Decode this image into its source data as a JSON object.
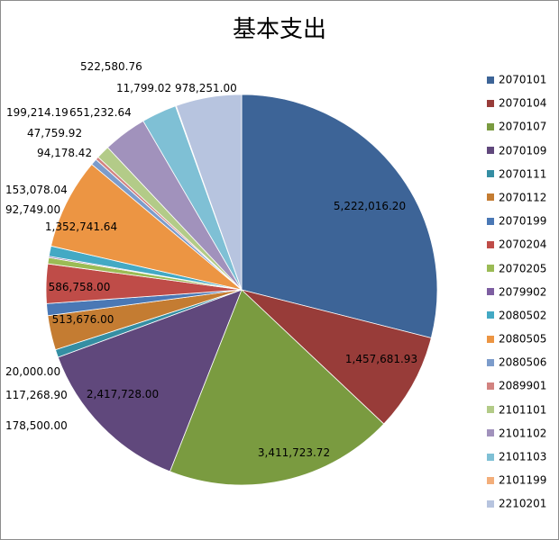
{
  "chart_data": {
    "type": "pie",
    "title": "基本支出",
    "legend_position": "right",
    "slices": [
      {
        "name": "2070101",
        "value": 5222016.2,
        "label": "5,222,016.20",
        "color": "#3d6497"
      },
      {
        "name": "2070104",
        "value": 1457681.93,
        "label": "1,457,681.93",
        "color": "#983c39"
      },
      {
        "name": "2070107",
        "value": 3411723.72,
        "label": "3,411,723.72",
        "color": "#7a9b40"
      },
      {
        "name": "2070109",
        "value": 2417728.0,
        "label": "2,417,728.00",
        "color": "#60487c"
      },
      {
        "name": "2070111",
        "value": 117268.9,
        "label": "117,268.90",
        "color": "#358ea3"
      },
      {
        "name": "2070112",
        "value": 513676.0,
        "label": "513,676.00",
        "color": "#c47c32"
      },
      {
        "name": "2070199",
        "value": 178500.0,
        "label": "178,500.00",
        "color": "#4a78b5"
      },
      {
        "name": "2070204",
        "value": 586758.0,
        "label": "586,758.00",
        "color": "#bf4c48"
      },
      {
        "name": "2070205",
        "value": 92749.0,
        "label": "92,749.00",
        "color": "#9bbb55"
      },
      {
        "name": "2079902",
        "value": 20000.0,
        "label": "20,000.00",
        "color": "#7d5ea1"
      },
      {
        "name": "2080502",
        "value": 153078.04,
        "label": "153,078.04",
        "color": "#43a9c4"
      },
      {
        "name": "2080505",
        "value": 1352741.64,
        "label": "1,352,741.64",
        "color": "#ec9543"
      },
      {
        "name": "2080506",
        "value": 94178.42,
        "label": "94,178.42",
        "color": "#7c9ccb"
      },
      {
        "name": "2089901",
        "value": 47759.92,
        "label": "47,759.92",
        "color": "#d28380"
      },
      {
        "name": "2101101",
        "value": 199214.19,
        "label": "199,214.19",
        "color": "#b3cb88"
      },
      {
        "name": "2101102",
        "value": 651232.64,
        "label": "651,232.64",
        "color": "#a192bc"
      },
      {
        "name": "2101103",
        "value": 522580.76,
        "label": "522,580.76",
        "color": "#7fc0d5"
      },
      {
        "name": "2101199",
        "value": 11799.02,
        "label": "11,799.02",
        "color": "#f3ae7a"
      },
      {
        "name": "2210201",
        "value": 978251.0,
        "label": "978,251.00",
        "color": "#b7c4df"
      }
    ]
  }
}
